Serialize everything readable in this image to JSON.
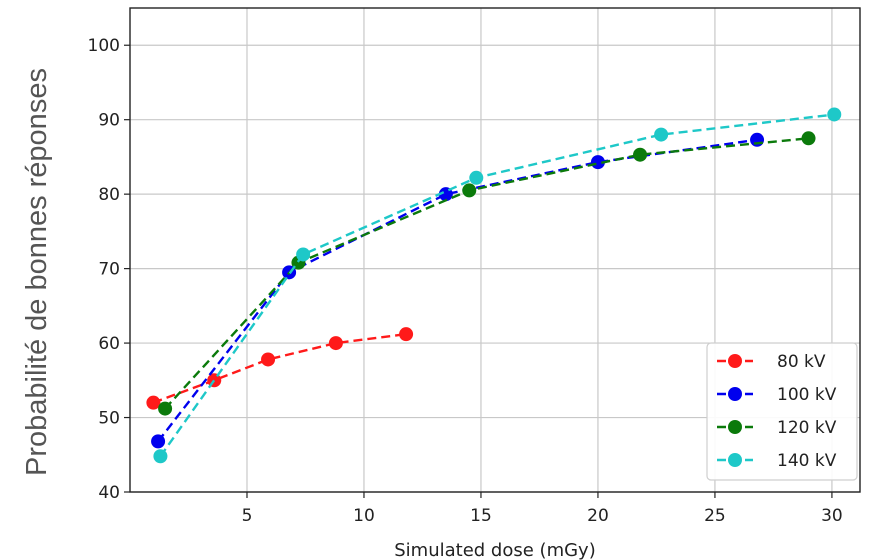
{
  "chart_data": {
    "type": "line",
    "title": "",
    "xlabel": "Simulated dose (mGy)",
    "ylabel": "Probabilité de bonnes réponses",
    "xlim": [
      0,
      31.2
    ],
    "ylim": [
      40,
      105
    ],
    "xticks": [
      5,
      10,
      15,
      20,
      25,
      30
    ],
    "yticks": [
      40,
      50,
      60,
      70,
      80,
      90,
      100
    ],
    "grid": true,
    "legend_position": "lower-right",
    "line_style": "dashed",
    "markers": "circle",
    "series": [
      {
        "name": "80 kV",
        "color": "#ff1a1a",
        "x": [
          1.0,
          3.6,
          5.9,
          8.8,
          11.8
        ],
        "y": [
          52.0,
          55.0,
          57.8,
          60.0,
          61.2
        ]
      },
      {
        "name": "100 kV",
        "color": "#0000ee",
        "x": [
          1.2,
          6.8,
          13.5,
          20.0,
          26.8
        ],
        "y": [
          46.8,
          69.5,
          80.0,
          84.3,
          87.3
        ]
      },
      {
        "name": "120 kV",
        "color": "#0b7a0b",
        "x": [
          1.5,
          7.2,
          14.5,
          21.8,
          29.0
        ],
        "y": [
          51.2,
          70.8,
          80.5,
          85.3,
          87.5
        ]
      },
      {
        "name": "140 kV",
        "color": "#1ec8c8",
        "x": [
          1.3,
          7.4,
          14.8,
          22.7,
          30.1
        ],
        "y": [
          44.8,
          71.9,
          82.2,
          88.0,
          90.7
        ]
      }
    ]
  }
}
